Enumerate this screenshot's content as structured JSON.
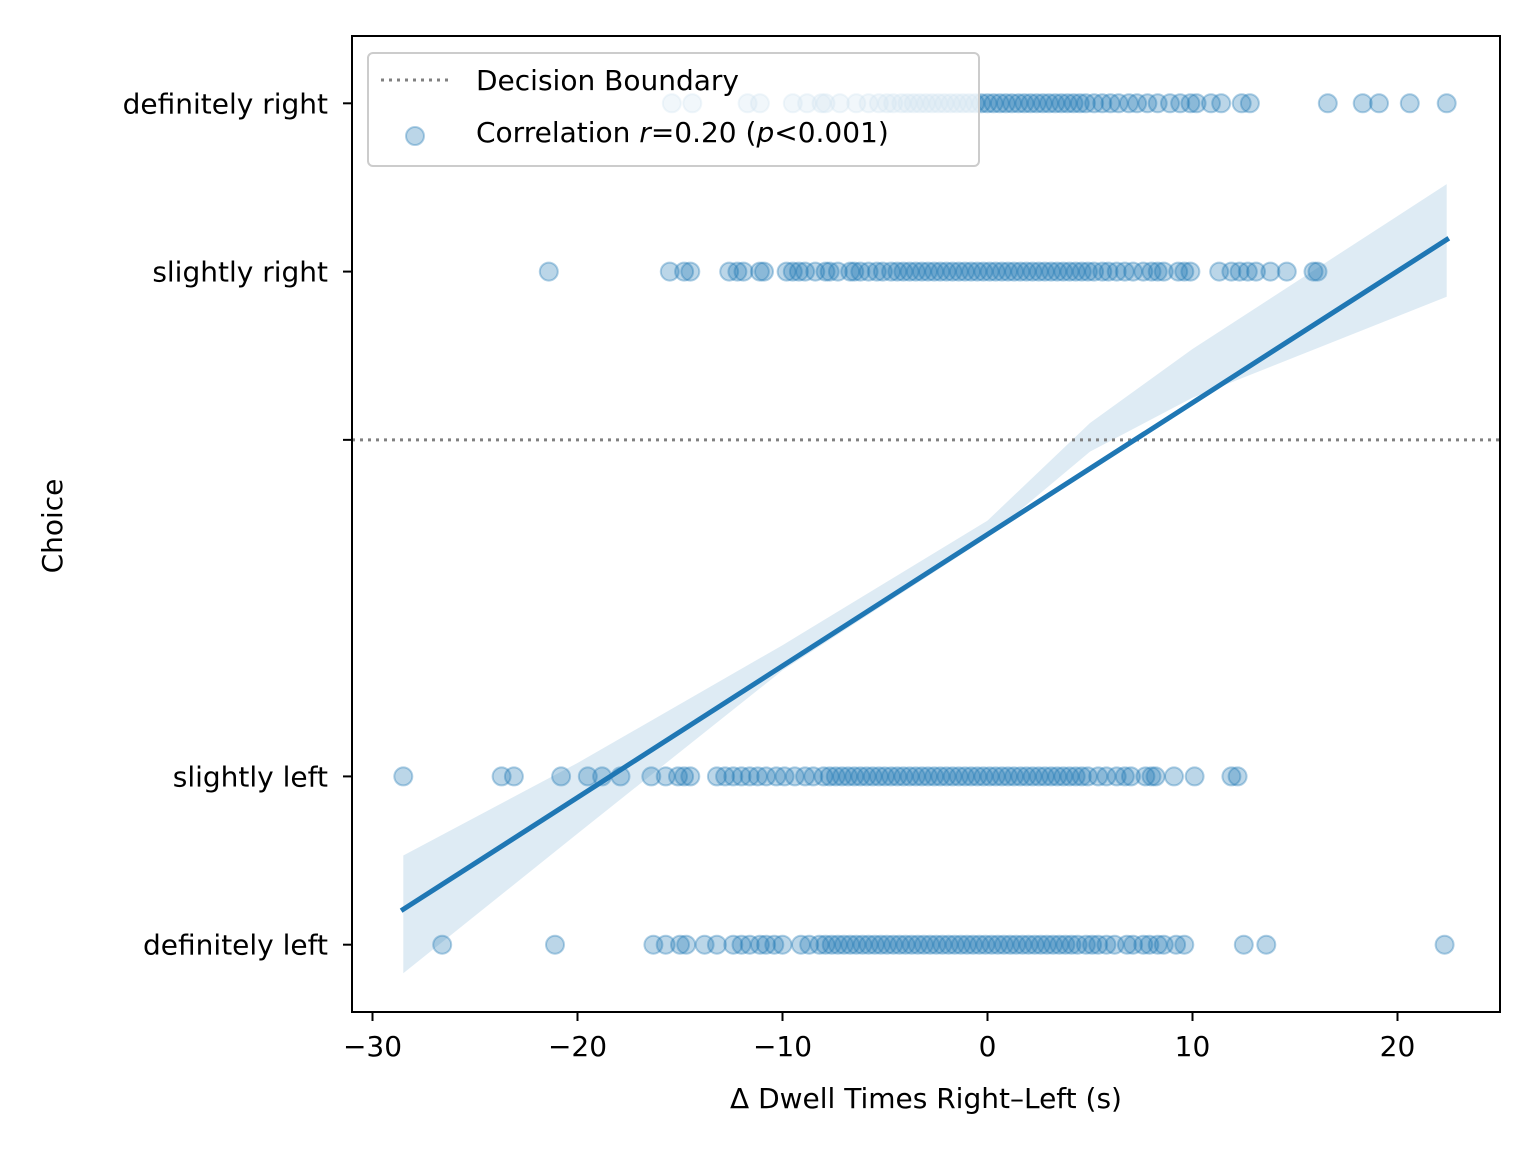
{
  "chart_data": {
    "type": "scatter",
    "title": "",
    "xlabel": "Δ Dwell Times Right–Left (s)",
    "ylabel": "Choice",
    "xlim": [
      -31,
      25
    ],
    "ylim": [
      -3.4,
      2.4
    ],
    "x_ticks": [
      {
        "value": -30,
        "label": "−30"
      },
      {
        "value": -20,
        "label": "−20"
      },
      {
        "value": -10,
        "label": "−10"
      },
      {
        "value": 0,
        "label": "0"
      },
      {
        "value": 10,
        "label": "10"
      },
      {
        "value": 20,
        "label": "20"
      }
    ],
    "y_ticks": [
      {
        "value": 2,
        "label": "definitely right"
      },
      {
        "value": 1,
        "label": "slightly right"
      },
      {
        "value": 0,
        "label": ""
      },
      {
        "value": -2,
        "label": "slightly left"
      },
      {
        "value": -3,
        "label": "definitely left"
      }
    ],
    "grid": false,
    "legend": {
      "placement": "top-left",
      "entries": [
        {
          "kind": "line",
          "label": "Decision Boundary"
        },
        {
          "kind": "marker",
          "label_prefix": "Correlation ",
          "label_r": "r",
          "label_mid": "=0.20 (",
          "label_p": "p",
          "label_suffix": "<0.001)"
        }
      ]
    },
    "decision_boundary": {
      "y": 0,
      "color": "#808080",
      "style": "dotted"
    },
    "regression": {
      "color": "#1f77b4",
      "line": [
        {
          "x": -28.5,
          "y": -2.79
        },
        {
          "x": 22.4,
          "y": 1.19
        }
      ],
      "band": [
        {
          "x": -28.5,
          "lower": -3.17,
          "upper": -2.47
        },
        {
          "x": -20,
          "lower": -2.34,
          "upper": -1.92
        },
        {
          "x": -10,
          "lower": -1.37,
          "upper": -1.22
        },
        {
          "x": 0,
          "lower": -0.58,
          "upper": -0.48
        },
        {
          "x": 5,
          "lower": -0.07,
          "upper": 0.1
        },
        {
          "x": 10,
          "lower": 0.25,
          "upper": 0.54
        },
        {
          "x": 22.4,
          "lower": 0.85,
          "upper": 1.52
        }
      ]
    },
    "marker_color": "#1f77b4",
    "series": [
      {
        "y": 2,
        "x": [
          -15.4,
          -14.4,
          -11.7,
          -11.1,
          -9.5,
          -8.8,
          -8.1,
          -7.9,
          -7.2,
          -6.4,
          -5.8,
          -5.3,
          -4.9,
          -4.6,
          -4.2,
          -3.9,
          -3.6,
          -3.3,
          -3.0,
          -2.7,
          -2.4,
          -2.1,
          -1.8,
          -1.5,
          -1.2,
          -0.9,
          -0.6,
          -0.3,
          0.0,
          0.3,
          0.6,
          0.9,
          1.2,
          1.5,
          1.8,
          2.1,
          2.4,
          2.7,
          3.0,
          3.3,
          3.6,
          3.9,
          4.2,
          4.5,
          4.8,
          5.2,
          5.6,
          6.0,
          6.4,
          6.9,
          7.3,
          7.8,
          8.3,
          8.9,
          9.4,
          9.9,
          10.2,
          10.9,
          11.4,
          12.4,
          12.8,
          16.6,
          18.3,
          19.1,
          20.6,
          22.4
        ]
      },
      {
        "y": 1,
        "x": [
          -21.4,
          -15.5,
          -14.8,
          -14.5,
          -12.6,
          -12.2,
          -11.9,
          -11.1,
          -10.9,
          -9.8,
          -9.5,
          -9.2,
          -8.9,
          -8.4,
          -7.9,
          -7.7,
          -7.3,
          -6.7,
          -6.5,
          -6.2,
          -5.8,
          -5.4,
          -5.1,
          -4.7,
          -4.4,
          -4.1,
          -3.8,
          -3.5,
          -3.2,
          -2.9,
          -2.6,
          -2.3,
          -2.0,
          -1.7,
          -1.4,
          -1.1,
          -0.8,
          -0.5,
          -0.2,
          0.1,
          0.4,
          0.7,
          1.0,
          1.3,
          1.6,
          1.9,
          2.2,
          2.5,
          2.8,
          3.1,
          3.4,
          3.7,
          4.0,
          4.3,
          4.6,
          4.9,
          5.2,
          5.6,
          5.9,
          6.3,
          6.7,
          7.1,
          7.6,
          8.0,
          8.3,
          8.6,
          9.3,
          9.6,
          9.9,
          11.3,
          11.9,
          12.3,
          12.7,
          13.1,
          13.8,
          14.6,
          15.9,
          16.1
        ]
      },
      {
        "y": -2,
        "x": [
          -28.5,
          -23.7,
          -23.1,
          -20.8,
          -19.5,
          -18.8,
          -17.9,
          -16.4,
          -15.7,
          -15.1,
          -14.8,
          -14.5,
          -13.2,
          -12.8,
          -12.4,
          -12.0,
          -11.6,
          -11.2,
          -10.8,
          -10.3,
          -9.9,
          -9.4,
          -8.9,
          -8.5,
          -8.0,
          -7.7,
          -7.4,
          -7.1,
          -6.8,
          -6.5,
          -6.2,
          -5.9,
          -5.6,
          -5.3,
          -5.0,
          -4.7,
          -4.4,
          -4.1,
          -3.8,
          -3.5,
          -3.2,
          -2.9,
          -2.6,
          -2.3,
          -2.0,
          -1.7,
          -1.4,
          -1.1,
          -0.8,
          -0.5,
          -0.2,
          0.1,
          0.4,
          0.7,
          1.0,
          1.3,
          1.6,
          1.9,
          2.2,
          2.5,
          2.8,
          3.1,
          3.4,
          3.7,
          4.0,
          4.3,
          4.6,
          4.9,
          5.4,
          5.8,
          6.3,
          6.7,
          7.0,
          7.7,
          8.0,
          8.2,
          9.1,
          10.1,
          11.9,
          12.2
        ]
      },
      {
        "y": -3,
        "x": [
          -26.6,
          -21.1,
          -16.3,
          -15.7,
          -15.0,
          -14.7,
          -13.8,
          -13.2,
          -12.4,
          -12.0,
          -11.6,
          -11.1,
          -10.8,
          -10.4,
          -10.0,
          -9.1,
          -8.7,
          -8.2,
          -7.9,
          -7.6,
          -7.3,
          -7.0,
          -6.7,
          -6.4,
          -6.1,
          -5.8,
          -5.5,
          -5.2,
          -4.9,
          -4.6,
          -4.3,
          -4.0,
          -3.7,
          -3.4,
          -3.1,
          -2.8,
          -2.5,
          -2.2,
          -1.9,
          -1.6,
          -1.3,
          -1.0,
          -0.7,
          -0.4,
          -0.1,
          0.2,
          0.5,
          0.8,
          1.1,
          1.4,
          1.7,
          2.0,
          2.3,
          2.6,
          2.9,
          3.2,
          3.5,
          3.8,
          4.1,
          4.4,
          4.8,
          5.1,
          5.4,
          5.8,
          6.2,
          6.8,
          7.1,
          7.6,
          7.9,
          8.3,
          8.6,
          9.2,
          9.6,
          12.5,
          13.6,
          22.3
        ]
      }
    ]
  }
}
